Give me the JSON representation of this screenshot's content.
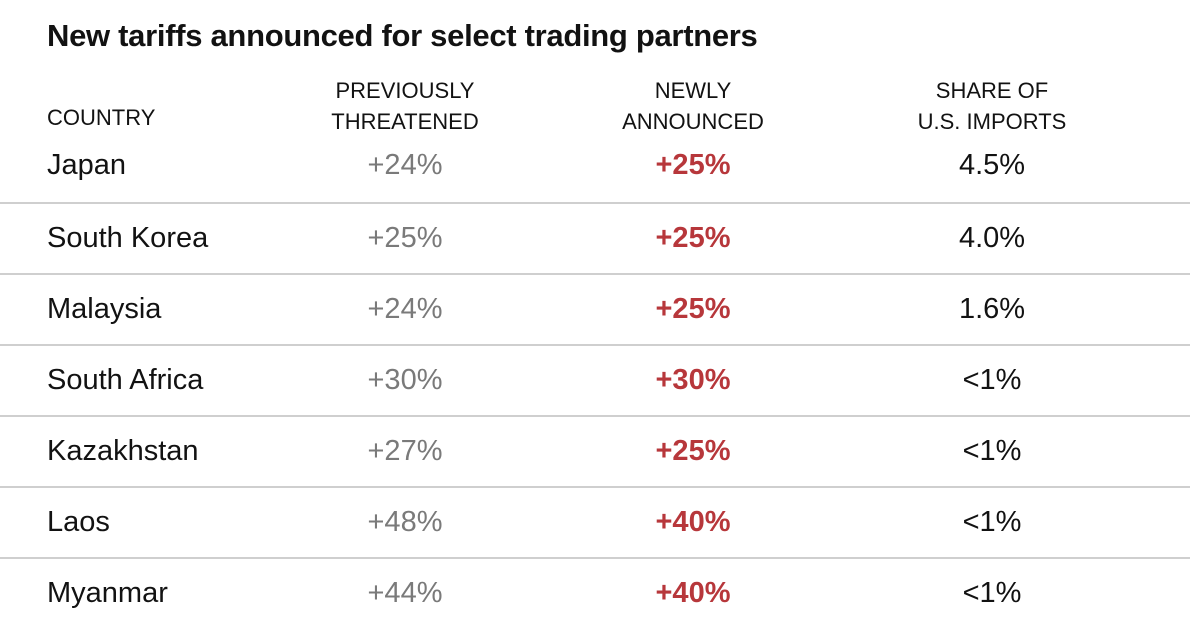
{
  "title": "New tariffs announced for select trading partners",
  "headers": {
    "country": "COUNTRY",
    "previously": [
      "PREVIOUSLY",
      "THREATENED"
    ],
    "newly": [
      "NEWLY",
      "ANNOUNCED"
    ],
    "share": [
      "SHARE OF",
      "U.S. IMPORTS"
    ]
  },
  "colors": {
    "newly_announced": "#b7373b",
    "previously_threatened": "#7a7a7a",
    "divider": "#cfcfcf"
  },
  "chart_data": {
    "type": "table",
    "title": "New tariffs announced for select trading partners",
    "columns": [
      "COUNTRY",
      "PREVIOUSLY THREATENED",
      "NEWLY ANNOUNCED",
      "SHARE OF U.S. IMPORTS"
    ],
    "rows": [
      {
        "country": "Japan",
        "previously": "+24%",
        "newly": "+25%",
        "share": "4.5%"
      },
      {
        "country": "South Korea",
        "previously": "+25%",
        "newly": "+25%",
        "share": "4.0%"
      },
      {
        "country": "Malaysia",
        "previously": "+24%",
        "newly": "+25%",
        "share": "1.6%"
      },
      {
        "country": "South Africa",
        "previously": "+30%",
        "newly": "+30%",
        "share": "<1%"
      },
      {
        "country": "Kazakhstan",
        "previously": "+27%",
        "newly": "+25%",
        "share": "<1%"
      },
      {
        "country": "Laos",
        "previously": "+48%",
        "newly": "+40%",
        "share": "<1%"
      },
      {
        "country": "Myanmar",
        "previously": "+44%",
        "newly": "+40%",
        "share": "<1%"
      }
    ]
  }
}
